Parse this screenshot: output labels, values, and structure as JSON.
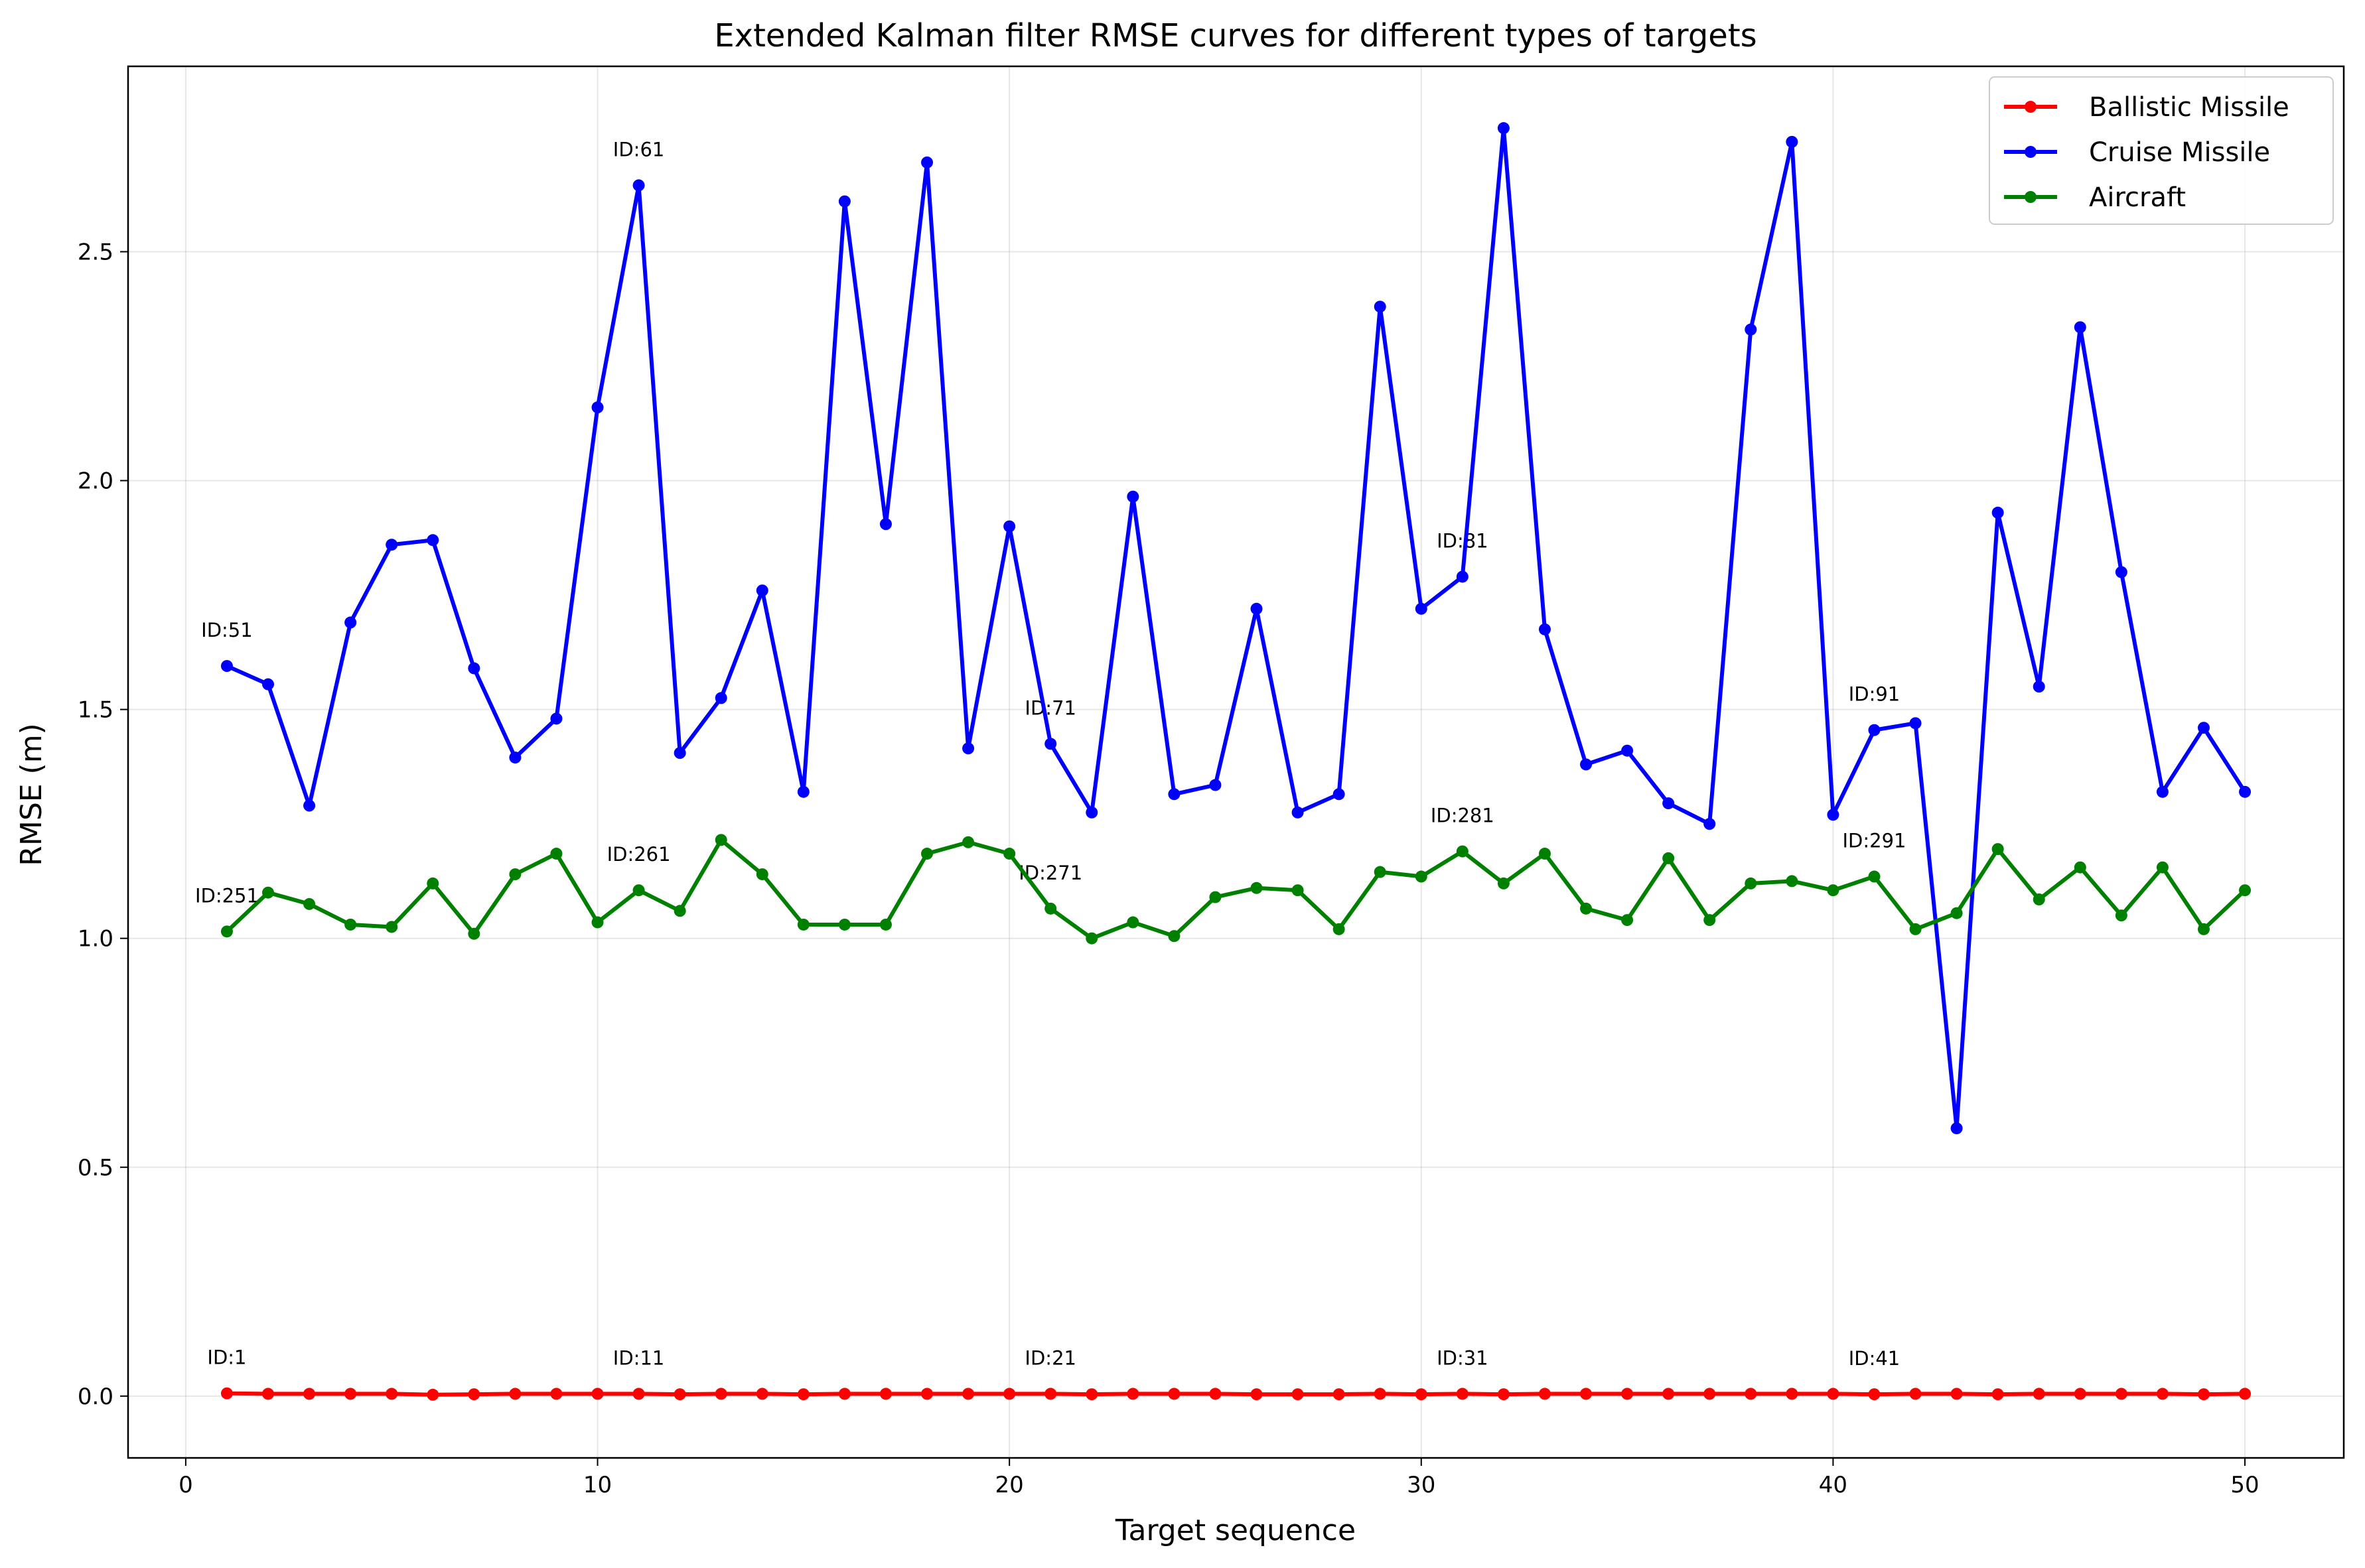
{
  "chart_data": {
    "type": "line",
    "title": "Extended Kalman filter RMSE curves for different types of targets",
    "xlabel": "Target sequence",
    "ylabel": "RMSE (m)",
    "xlim": [
      -1.4,
      52.4
    ],
    "ylim": [
      -0.135,
      2.905
    ],
    "xticks": [
      0,
      10,
      20,
      30,
      40,
      50
    ],
    "xtick_labels": [
      "0",
      "10",
      "20",
      "30",
      "40",
      "50"
    ],
    "yticks": [
      0.0,
      0.5,
      1.0,
      1.5,
      2.0,
      2.5
    ],
    "ytick_labels": [
      "0.0",
      "0.5",
      "1.0",
      "1.5",
      "2.0",
      "2.5"
    ],
    "grid": true,
    "legend_position": "upper right",
    "x": [
      1,
      2,
      3,
      4,
      5,
      6,
      7,
      8,
      9,
      10,
      11,
      12,
      13,
      14,
      15,
      16,
      17,
      18,
      19,
      20,
      21,
      22,
      23,
      24,
      25,
      26,
      27,
      28,
      29,
      30,
      31,
      32,
      33,
      34,
      35,
      36,
      37,
      38,
      39,
      40,
      41,
      42,
      43,
      44,
      45,
      46,
      47,
      48,
      49,
      50
    ],
    "series": [
      {
        "name": "Ballistic Missile",
        "color": "#ff0000",
        "values": [
          0.006,
          0.005,
          0.005,
          0.005,
          0.005,
          0.003,
          0.004,
          0.005,
          0.005,
          0.005,
          0.005,
          0.004,
          0.005,
          0.005,
          0.004,
          0.005,
          0.005,
          0.005,
          0.005,
          0.005,
          0.005,
          0.004,
          0.005,
          0.005,
          0.005,
          0.004,
          0.004,
          0.004,
          0.005,
          0.004,
          0.005,
          0.004,
          0.005,
          0.005,
          0.005,
          0.005,
          0.005,
          0.005,
          0.005,
          0.005,
          0.004,
          0.005,
          0.005,
          0.004,
          0.005,
          0.005,
          0.005,
          0.005,
          0.004,
          0.005
        ]
      },
      {
        "name": "Cruise Missile",
        "color": "#0000ff",
        "values": [
          1.595,
          1.555,
          1.29,
          1.69,
          1.86,
          1.87,
          1.59,
          1.395,
          1.48,
          2.16,
          2.645,
          1.405,
          1.525,
          1.76,
          1.32,
          2.61,
          1.905,
          2.695,
          1.415,
          1.9,
          1.425,
          1.275,
          1.965,
          1.315,
          1.335,
          1.72,
          1.275,
          1.315,
          2.38,
          1.72,
          1.79,
          2.77,
          1.675,
          1.38,
          1.41,
          1.295,
          1.25,
          2.33,
          2.74,
          1.27,
          1.455,
          1.47,
          0.585,
          1.93,
          1.55,
          2.335,
          1.8,
          1.32,
          1.46,
          1.32
        ]
      },
      {
        "name": "Aircraft",
        "color": "#008000",
        "values": [
          1.015,
          1.1,
          1.075,
          1.03,
          1.025,
          1.12,
          1.01,
          1.14,
          1.185,
          1.035,
          1.105,
          1.06,
          1.215,
          1.14,
          1.03,
          1.03,
          1.03,
          1.185,
          1.21,
          1.185,
          1.065,
          1.0,
          1.035,
          1.005,
          1.09,
          1.11,
          1.105,
          1.02,
          1.145,
          1.135,
          1.19,
          1.12,
          1.185,
          1.065,
          1.04,
          1.175,
          1.04,
          1.12,
          1.125,
          1.105,
          1.135,
          1.02,
          1.055,
          1.195,
          1.085,
          1.155,
          1.05,
          1.155,
          1.02,
          1.105
        ]
      }
    ],
    "annotations": [
      {
        "text": "ID:1",
        "x": 1,
        "y": 0.006
      },
      {
        "text": "ID:11",
        "x": 11,
        "y": 0.005
      },
      {
        "text": "ID:21",
        "x": 21,
        "y": 0.005
      },
      {
        "text": "ID:31",
        "x": 31,
        "y": 0.005
      },
      {
        "text": "ID:41",
        "x": 41,
        "y": 0.004
      },
      {
        "text": "ID:51",
        "x": 1,
        "y": 1.595
      },
      {
        "text": "ID:61",
        "x": 11,
        "y": 2.645
      },
      {
        "text": "ID:71",
        "x": 21,
        "y": 1.425
      },
      {
        "text": "ID:81",
        "x": 31,
        "y": 1.79
      },
      {
        "text": "ID:91",
        "x": 41,
        "y": 1.455
      },
      {
        "text": "ID:251",
        "x": 1,
        "y": 1.015
      },
      {
        "text": "ID:261",
        "x": 11,
        "y": 1.105
      },
      {
        "text": "ID:271",
        "x": 21,
        "y": 1.065
      },
      {
        "text": "ID:281",
        "x": 31,
        "y": 1.19
      },
      {
        "text": "ID:291",
        "x": 41,
        "y": 1.135
      }
    ]
  }
}
